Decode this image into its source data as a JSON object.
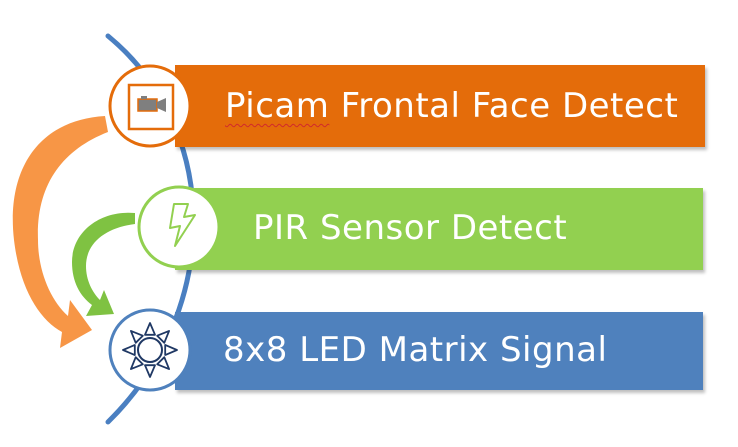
{
  "colors": {
    "arc": "#4a7fc1",
    "orange": "#e46c0a",
    "orange_arrow": "#f79646",
    "green": "#92d050",
    "green_arrow": "#7fc242",
    "blue": "#4f81bd",
    "circle_fill": "#ffffff"
  },
  "items": [
    {
      "label_first": "Picam",
      "label_rest": " Frontal Face Detect",
      "icon": "video-camera-icon"
    },
    {
      "label": "PIR Sensor Detect",
      "icon": "lightning-icon"
    },
    {
      "label": "8x8 LED Matrix Signal",
      "icon": "sun-icon"
    }
  ]
}
